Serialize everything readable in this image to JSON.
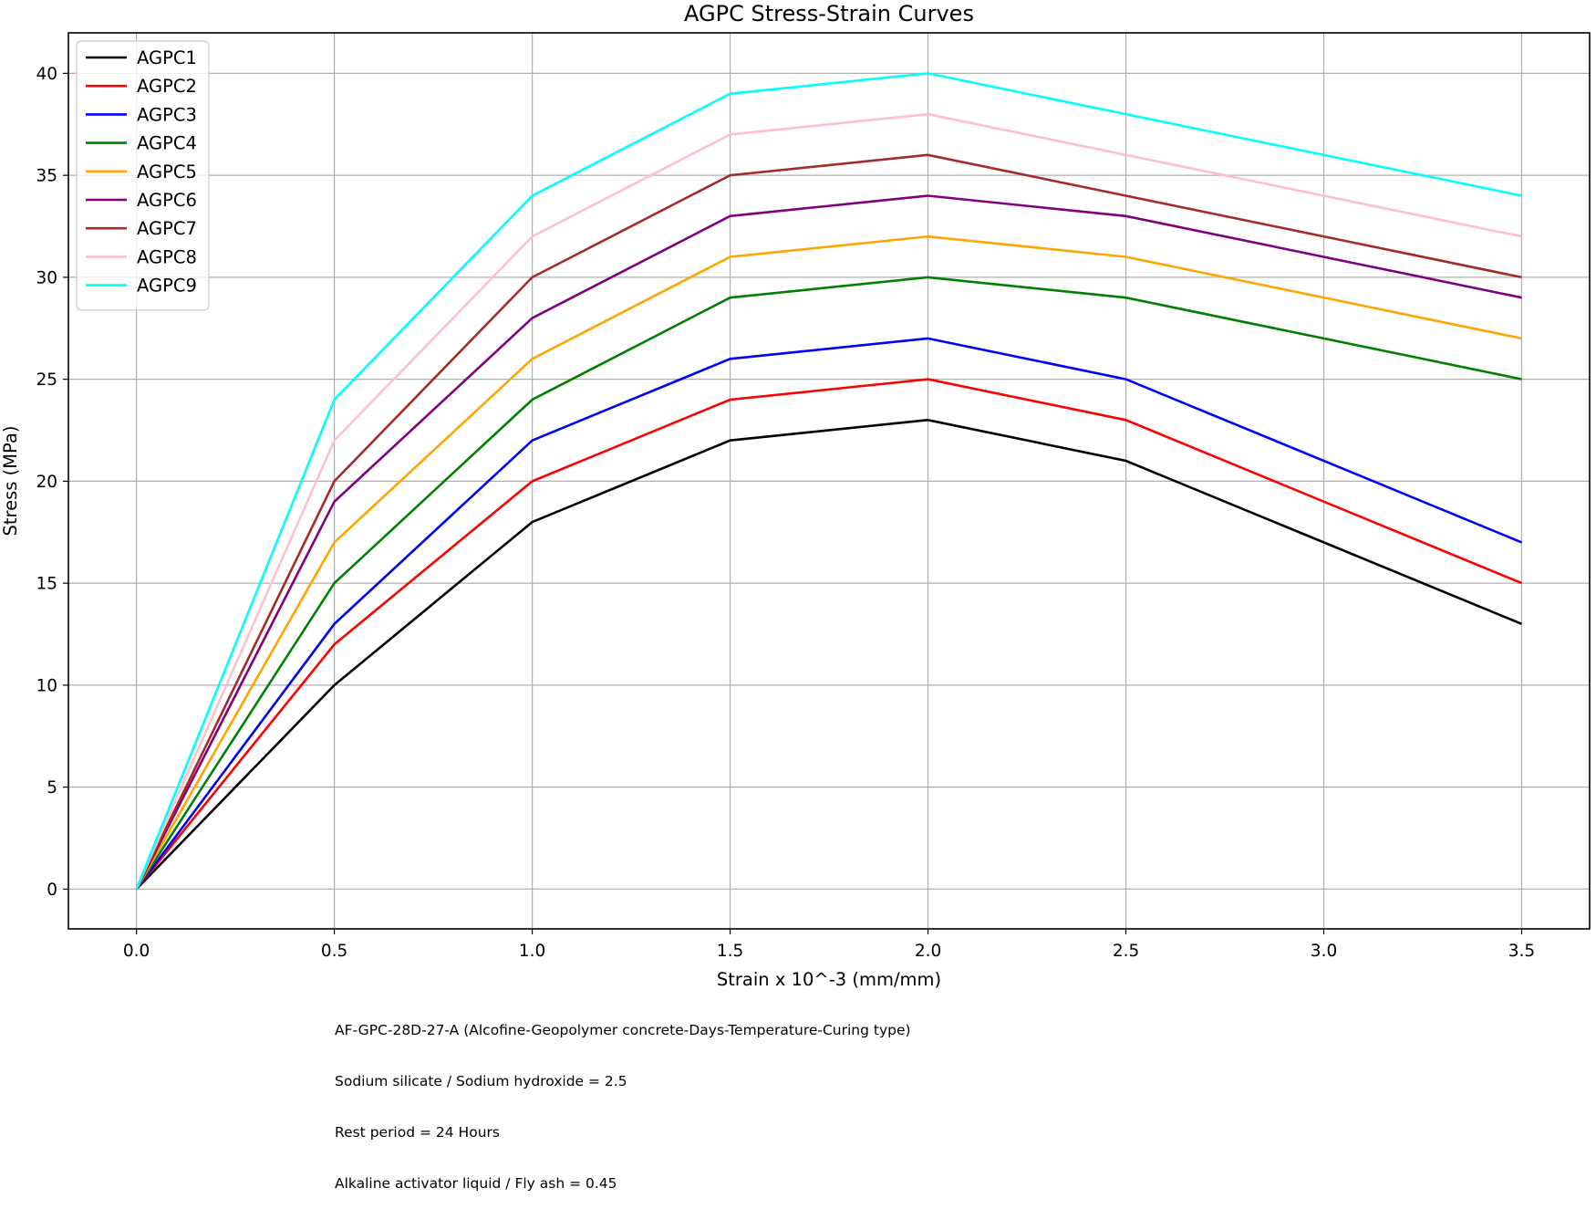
{
  "chart_data": {
    "type": "line",
    "title": "AGPC Stress-Strain Curves",
    "xlabel": "Strain x 10^-3 (mm/mm)",
    "ylabel": "Stress (MPa)",
    "x": [
      0.0,
      0.5,
      1.0,
      1.5,
      2.0,
      2.5,
      3.5
    ],
    "xlim": [
      -0.17,
      3.67
    ],
    "ylim": [
      -2,
      42
    ],
    "xticks": [
      "0.0",
      "0.5",
      "1.0",
      "1.5",
      "2.0",
      "2.5",
      "3.0",
      "3.5"
    ],
    "yticks": [
      "0",
      "5",
      "10",
      "15",
      "20",
      "25",
      "30",
      "35",
      "40"
    ],
    "grid": true,
    "legend_position": "upper left",
    "series": [
      {
        "name": "AGPC1",
        "color": "#000000",
        "values": [
          0,
          10,
          18,
          22,
          23,
          21,
          13
        ]
      },
      {
        "name": "AGPC2",
        "color": "#ff0000",
        "values": [
          0,
          12,
          20,
          24,
          25,
          23,
          15
        ]
      },
      {
        "name": "AGPC3",
        "color": "#0000ff",
        "values": [
          0,
          13,
          22,
          26,
          27,
          25,
          17
        ]
      },
      {
        "name": "AGPC4",
        "color": "#008000",
        "values": [
          0,
          15,
          24,
          29,
          30,
          29,
          25
        ]
      },
      {
        "name": "AGPC5",
        "color": "#ffa500",
        "values": [
          0,
          17,
          26,
          31,
          32,
          31,
          27
        ]
      },
      {
        "name": "AGPC6",
        "color": "#800080",
        "values": [
          0,
          19,
          28,
          33,
          34,
          33,
          29
        ]
      },
      {
        "name": "AGPC7",
        "color": "#a52a2a",
        "values": [
          0,
          20,
          30,
          35,
          36,
          34,
          30
        ]
      },
      {
        "name": "AGPC8",
        "color": "#ffc0cb",
        "values": [
          0,
          22,
          32,
          37,
          38,
          36,
          32
        ]
      },
      {
        "name": "AGPC9",
        "color": "#00ffff",
        "values": [
          0,
          24,
          34,
          39,
          40,
          38,
          34
        ]
      }
    ],
    "annotations": [
      "AF-GPC-28D-27-A (Alcofine-Geopolymer concrete-Days-Temperature-Curing type)",
      "Sodium silicate / Sodium hydroxide = 2.5",
      "Rest period = 24 Hours",
      "Alkaline activator liquid / Fly ash = 0.45"
    ]
  },
  "figure": {
    "title": "AGPC Stress-Strain Curves",
    "xlabel": "Strain x 10^-3 (mm/mm)",
    "ylabel": "Stress (MPa)",
    "notes": {
      "line1": "AF-GPC-28D-27-A (Alcofine-Geopolymer concrete-Days-Temperature-Curing type)",
      "line2": "Sodium silicate / Sodium hydroxide = 2.5",
      "line3": "Rest period = 24 Hours",
      "line4": "Alkaline activator liquid / Fly ash = 0.45"
    }
  },
  "colors": {
    "grid": "#b0b0b0",
    "axes": "#000000",
    "legend_border": "#cccccc"
  }
}
